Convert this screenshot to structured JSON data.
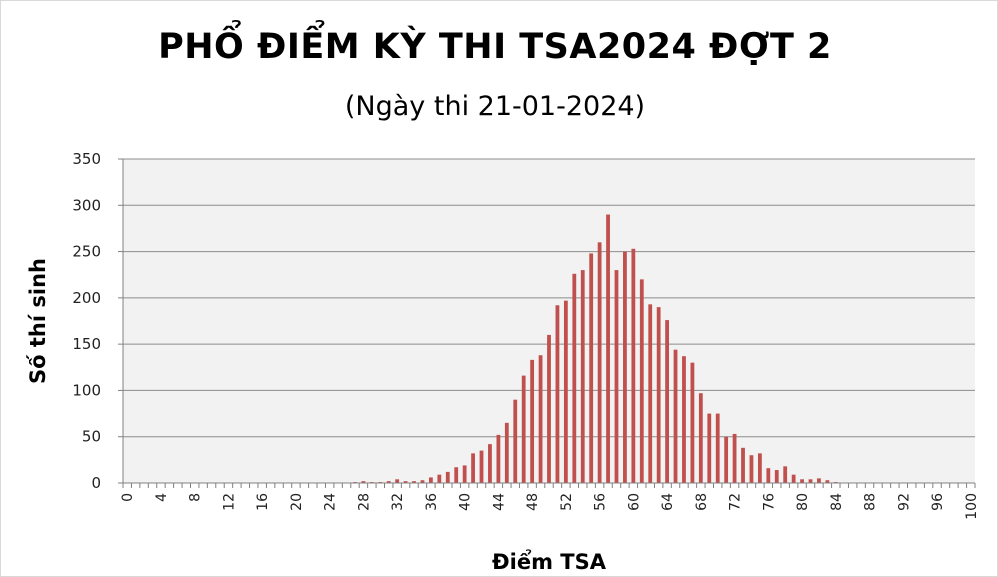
{
  "chart_data": {
    "type": "bar",
    "title": "PHỔ ĐIỂM KỲ THI TSA2024 ĐỢT 2",
    "subtitle": "(Ngày thi 21-01-2024)",
    "xlabel": "Điểm TSA",
    "ylabel": "Số thí sinh",
    "ylim": [
      0,
      350
    ],
    "yticks": [
      0,
      50,
      100,
      150,
      200,
      250,
      300,
      350
    ],
    "xlim": [
      0,
      100
    ],
    "xticks": [
      0,
      4,
      8,
      12,
      16,
      20,
      24,
      28,
      32,
      36,
      40,
      44,
      48,
      52,
      56,
      60,
      64,
      68,
      72,
      76,
      80,
      84,
      88,
      92,
      96,
      100
    ],
    "grid": true,
    "bar_color": "#c0504d",
    "plot_background": "#f2f2f2",
    "x": [
      27,
      28,
      29,
      30,
      31,
      32,
      33,
      34,
      35,
      36,
      37,
      38,
      39,
      40,
      41,
      42,
      43,
      44,
      45,
      46,
      47,
      48,
      49,
      50,
      51,
      52,
      53,
      54,
      55,
      56,
      57,
      58,
      59,
      60,
      61,
      62,
      63,
      64,
      65,
      66,
      67,
      68,
      69,
      70,
      71,
      72,
      73,
      74,
      75,
      76,
      77,
      78,
      79,
      80,
      81,
      82,
      83,
      84
    ],
    "values": [
      1,
      2,
      1,
      1,
      2,
      4,
      2,
      2,
      3,
      6,
      9,
      12,
      17,
      19,
      32,
      35,
      42,
      52,
      65,
      90,
      116,
      133,
      138,
      160,
      192,
      197,
      226,
      230,
      248,
      260,
      290,
      230,
      250,
      253,
      220,
      193,
      190,
      176,
      144,
      137,
      130,
      97,
      75,
      75,
      50,
      53,
      38,
      30,
      32,
      16,
      14,
      18,
      9,
      4,
      4,
      5,
      3,
      1
    ]
  }
}
